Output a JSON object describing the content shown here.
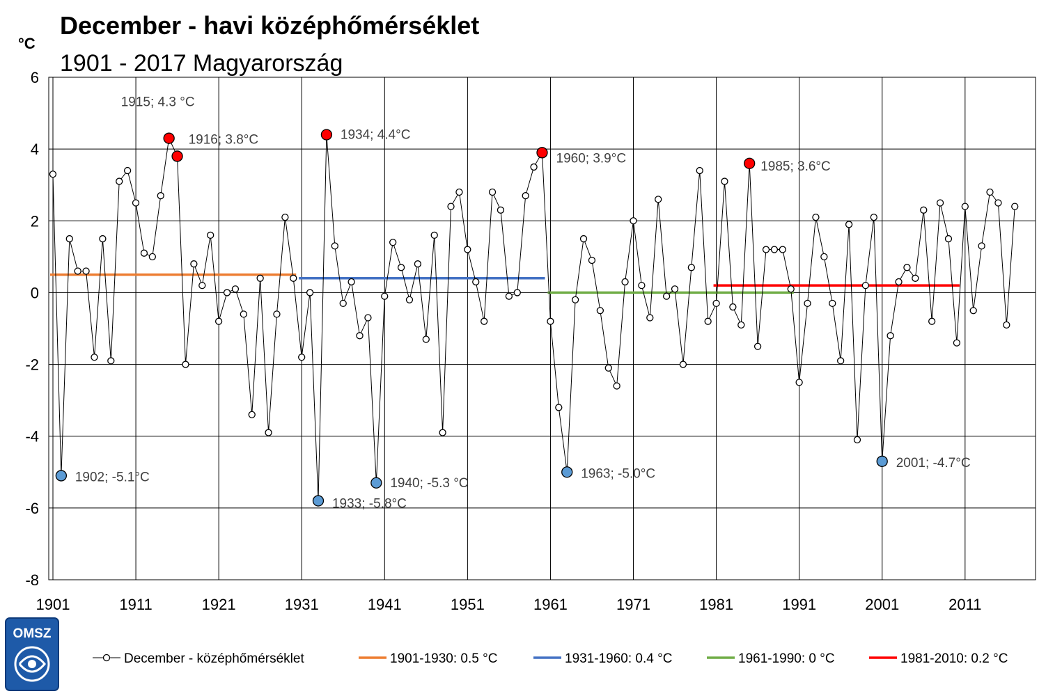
{
  "title": "December - havi középhőmérséklet",
  "subtitle": "1901 - 2017  Magyarország",
  "y_unit": "°C",
  "logo_text": "OMSZ",
  "chart_data": {
    "type": "line",
    "title": "December - havi középhőmérséklet",
    "subtitle": "1901 - 2017  Magyarország",
    "ylabel": "°C",
    "xlim": [
      1901,
      2020
    ],
    "ylim": [
      -8,
      6
    ],
    "y_ticks": [
      6,
      4,
      2,
      0,
      -2,
      -4,
      -6,
      -8
    ],
    "y_tick_labels": [
      "6",
      "4",
      "2",
      "0",
      "-2",
      "-4",
      "-6",
      "-8"
    ],
    "x_ticks": [
      1901,
      1911,
      1921,
      1931,
      1941,
      1951,
      1961,
      1971,
      1981,
      1991,
      2001,
      2011
    ],
    "x_tick_labels": [
      "1901",
      "1911",
      "1921",
      "1931",
      "1941",
      "1951",
      "1961",
      "1971",
      "1981",
      "1991",
      "2001",
      "2011"
    ],
    "grid": true,
    "legend_position": "bottom",
    "series": [
      {
        "name": "December - középhőmérséklet",
        "color": "#000000",
        "x_start": 1901,
        "values": [
          3.3,
          -5.1,
          1.5,
          0.6,
          0.6,
          -1.8,
          1.5,
          -1.9,
          3.1,
          3.4,
          2.5,
          1.1,
          1.0,
          2.7,
          4.3,
          3.8,
          -2.0,
          0.8,
          0.2,
          1.6,
          -0.8,
          0.0,
          0.1,
          -0.6,
          -3.4,
          0.4,
          -3.9,
          -0.6,
          2.1,
          0.4,
          -1.8,
          0.0,
          -5.8,
          4.4,
          1.3,
          -0.3,
          0.3,
          -1.2,
          -0.7,
          -5.3,
          -0.1,
          1.4,
          0.7,
          -0.2,
          0.8,
          -1.3,
          1.6,
          -3.9,
          2.4,
          2.8,
          1.2,
          0.3,
          -0.8,
          2.8,
          2.3,
          -0.1,
          0.0,
          2.7,
          3.5,
          3.9,
          -0.8,
          -3.2,
          -5.0,
          -0.2,
          1.5,
          0.9,
          -0.5,
          -2.1,
          -2.6,
          0.3,
          2.0,
          0.2,
          -0.7,
          2.6,
          -0.1,
          0.1,
          -2.0,
          0.7,
          3.4,
          -0.8,
          -0.3,
          3.1,
          -0.4,
          -0.9,
          3.6,
          -1.5,
          1.2,
          1.2,
          1.2,
          0.1,
          -2.5,
          -0.3,
          2.1,
          1.0,
          -0.3,
          -1.9,
          1.9,
          -4.1,
          0.2,
          2.1,
          -4.7,
          -1.2,
          0.3,
          0.7,
          0.4,
          2.3,
          -0.8,
          2.5,
          1.5,
          -1.4,
          2.4,
          -0.5,
          1.3,
          2.8,
          2.5,
          -0.9,
          2.4
        ]
      },
      {
        "name": "1901-1930: 0.5 °C",
        "color": "#ED7D31",
        "from": 1901,
        "to": 1930,
        "value": 0.5
      },
      {
        "name": "1931-1960: 0.4 °C",
        "color": "#4472C4",
        "from": 1931,
        "to": 1960,
        "value": 0.4
      },
      {
        "name": "1961-1990: 0 °C",
        "color": "#70AD47",
        "from": 1961,
        "to": 1990,
        "value": 0.0
      },
      {
        "name": "1981-2010: 0.2 °C",
        "color": "#FF0000",
        "from": 1981,
        "to": 2010,
        "value": 0.2
      }
    ],
    "highlights": [
      {
        "year": 1915,
        "value": 4.3,
        "kind": "warm",
        "label": "1915; 4.3 °C"
      },
      {
        "year": 1916,
        "value": 3.8,
        "kind": "warm",
        "label": "1916; 3.8°C"
      },
      {
        "year": 1934,
        "value": 4.4,
        "kind": "warm",
        "label": "1934; 4.4°C"
      },
      {
        "year": 1960,
        "value": 3.9,
        "kind": "warm",
        "label": "1960; 3.9°C"
      },
      {
        "year": 1985,
        "value": 3.6,
        "kind": "warm",
        "label": "1985; 3.6°C"
      },
      {
        "year": 1902,
        "value": -5.1,
        "kind": "cold",
        "label": "1902; -5.1°C"
      },
      {
        "year": 1933,
        "value": -5.8,
        "kind": "cold",
        "label": "1933; -5.8°C"
      },
      {
        "year": 1940,
        "value": -5.3,
        "kind": "cold",
        "label": "1940; -5.3 °C"
      },
      {
        "year": 1963,
        "value": -5.0,
        "kind": "cold",
        "label": "1963; -5.0°C"
      },
      {
        "year": 2001,
        "value": -4.7,
        "kind": "cold",
        "label": "2001; -4.7°C"
      }
    ],
    "warm_color": "#FF0000",
    "cold_color": "#5B9BD5"
  }
}
